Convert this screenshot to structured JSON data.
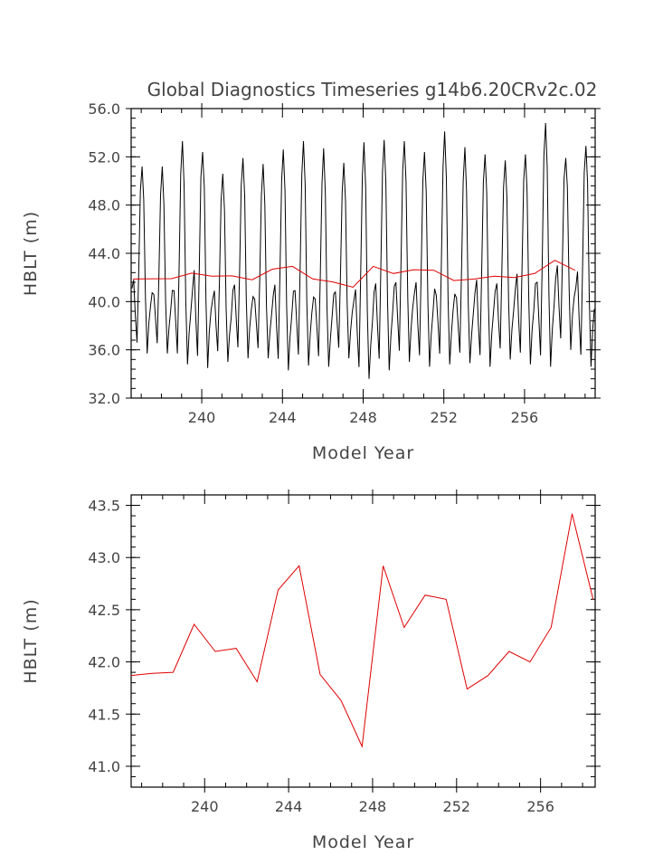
{
  "chart_data": [
    {
      "type": "line",
      "title": "Global Diagnostics Timeseries g14b6.20CRv2c.02",
      "xlabel": "Model Year",
      "ylabel": "HBLT (m)",
      "xlim": [
        236.5,
        259.5
      ],
      "ylim": [
        32,
        56
      ],
      "xticks": [
        240,
        244,
        248,
        252,
        256
      ],
      "yticks": [
        32,
        36,
        40,
        44,
        48,
        52,
        56
      ],
      "ytick_labels": [
        "32.0",
        "36.0",
        "40.0",
        "44.0",
        "48.0",
        "52.0",
        "56.0"
      ],
      "series": [
        {
          "color": "#000000",
          "monthly_peaks": [
            51.2,
            51.2,
            53.3,
            52.4,
            50.6,
            51.9,
            51.4,
            52.6,
            53.3,
            52.7,
            51.5,
            53.2,
            53.4,
            53.3,
            52.4,
            54.1,
            52.8,
            52.2,
            51.7,
            52.2,
            54.8,
            51.9,
            52.9
          ],
          "monthly_troughs": [
            35.7,
            35.7,
            34.8,
            34.5,
            35.0,
            35.3,
            35.3,
            34.3,
            34.7,
            34.6,
            35.3,
            33.6,
            34.3,
            35.0,
            34.6,
            34.8,
            34.9,
            34.6,
            35.2,
            34.8,
            34.6,
            36.0,
            34.6
          ],
          "monthly_secondary": [
            41.8,
            40.6,
            40.9,
            42.6,
            40.9,
            41.4,
            40.2,
            41.4,
            40.9,
            40.2,
            40.8,
            41.0,
            41.5,
            41.6,
            41.6,
            40.5,
            40.3,
            41.8,
            41.5,
            42.3,
            41.6,
            43.0,
            42.5
          ]
        },
        {
          "color": "#e00000",
          "x": [
            236.6,
            237.5,
            238.5,
            239.5,
            240.5,
            241.5,
            242.5,
            243.5,
            244.5,
            245.5,
            246.5,
            247.5,
            248.5,
            249.5,
            250.5,
            251.5,
            252.5,
            253.5,
            254.5,
            255.5,
            256.5,
            257.5,
            258.5
          ],
          "values": [
            41.87,
            41.89,
            41.9,
            42.36,
            42.1,
            42.13,
            41.81,
            42.69,
            42.92,
            41.88,
            41.63,
            41.19,
            42.92,
            42.33,
            42.64,
            42.6,
            41.74,
            41.87,
            42.1,
            42.0,
            42.33,
            43.42,
            42.6
          ]
        }
      ]
    },
    {
      "type": "line",
      "xlabel": "Model Year",
      "ylabel": "HBLT (m)",
      "xlim": [
        236.5,
        258.6
      ],
      "ylim": [
        40.8,
        43.6
      ],
      "xticks": [
        240,
        244,
        248,
        252,
        256
      ],
      "yticks": [
        41.0,
        41.5,
        42.0,
        42.5,
        43.0,
        43.5
      ],
      "ytick_labels": [
        "41.0",
        "41.5",
        "42.0",
        "42.5",
        "43.0",
        "43.5"
      ],
      "series": [
        {
          "color": "#e00000",
          "x": [
            236.5,
            237.5,
            238.5,
            239.5,
            240.5,
            241.5,
            242.5,
            243.5,
            244.5,
            245.5,
            246.5,
            247.5,
            248.5,
            249.5,
            250.5,
            251.5,
            252.5,
            253.5,
            254.5,
            255.5,
            256.5,
            257.5,
            258.5
          ],
          "values": [
            41.87,
            41.89,
            41.9,
            42.36,
            42.1,
            42.13,
            41.81,
            42.69,
            42.92,
            41.88,
            41.63,
            41.19,
            42.92,
            42.33,
            42.64,
            42.6,
            41.74,
            41.87,
            42.1,
            42.0,
            42.33,
            43.42,
            42.6
          ]
        }
      ]
    }
  ]
}
